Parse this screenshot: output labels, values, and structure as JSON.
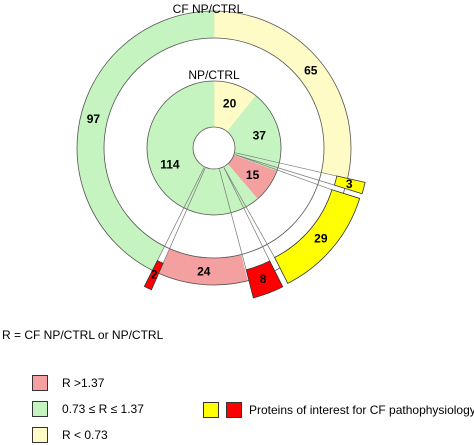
{
  "chart_data": {
    "type": "pie",
    "outer_title": "CF NP/CTRL",
    "inner_title": "NP/CTRL",
    "ratio_definition": "R = CF NP/CTRL or NP/CTRL",
    "rings": [
      {
        "name": "CF NP/CTRL",
        "slices": [
          {
            "label": "65",
            "value": 65,
            "category": "low",
            "color": "#fffbc6"
          },
          {
            "label": "3",
            "value": 3,
            "category": "low",
            "interest": true,
            "color": "#ffff00"
          },
          {
            "label": "29",
            "value": 29,
            "category": "low",
            "interest": true,
            "color": "#ffff00"
          },
          {
            "label": "8",
            "value": 8,
            "category": "high",
            "interest": true,
            "color": "#ff0000"
          },
          {
            "label": "24",
            "value": 24,
            "category": "high",
            "color": "#f4a0a0"
          },
          {
            "label": "2",
            "value": 2,
            "category": "high",
            "interest": true,
            "color": "#ff0000"
          },
          {
            "label": "97",
            "value": 97,
            "category": "mid",
            "color": "#c5f4c0"
          }
        ]
      },
      {
        "name": "NP/CTRL",
        "slices": [
          {
            "label": "20",
            "value": 20,
            "category": "low",
            "color": "#fffbc6"
          },
          {
            "label": "37",
            "value": 37,
            "category": "mid",
            "color": "#c5f4c0"
          },
          {
            "label": "15",
            "value": 15,
            "category": "high",
            "color": "#f4a0a0"
          },
          {
            "label": "114",
            "value": 114,
            "category": "mid",
            "color": "#c5f4c0"
          }
        ]
      }
    ],
    "legend": [
      {
        "label": "R >1.37",
        "color": "#f4a0a0"
      },
      {
        "label": "0.73 ≤ R ≤ 1.37",
        "color": "#c5f4c0"
      },
      {
        "label": "R < 0.73",
        "color": "#fffbc6"
      }
    ],
    "interest_legend": {
      "label": "Proteins of interest for CF pathophysiology",
      "colors": [
        "#ffff00",
        "#ff0000"
      ]
    }
  }
}
